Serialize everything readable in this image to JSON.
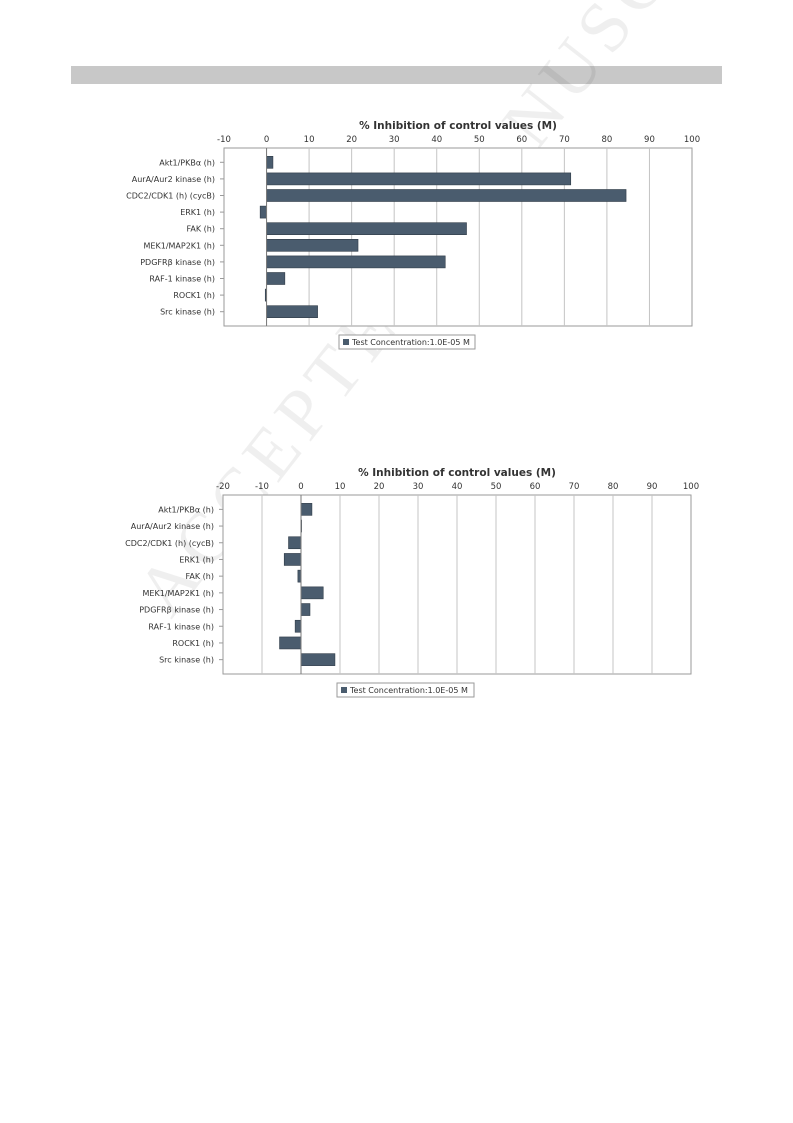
{
  "watermark": "ACCEPTED MANUSCRIPT",
  "chart_data": [
    {
      "type": "bar",
      "orientation": "horizontal",
      "title": "% Inhibition of control values (M)",
      "xlim": [
        -10,
        100
      ],
      "xticks": [
        -10,
        0,
        10,
        20,
        30,
        40,
        50,
        60,
        70,
        80,
        90,
        100
      ],
      "categories": [
        "Akt1/PKBα (h)",
        "AurA/Aur2 kinase (h)",
        "CDC2/CDK1 (h) (cycB)",
        "ERK1 (h)",
        "FAK (h)",
        "MEK1/MAP2K1 (h)",
        "PDGFRβ kinase (h)",
        "RAF-1 kinase (h)",
        "ROCK1 (h)",
        "Src kinase (h)"
      ],
      "series": [
        {
          "name": "Test Concentration:1.0E-05 M",
          "values": [
            1.5,
            71.5,
            84.5,
            -1.5,
            47,
            21.5,
            42,
            4.3,
            -0.3,
            12
          ]
        }
      ],
      "legend_position": "bottom",
      "grid": true,
      "bar_color": "#4a5c6e"
    },
    {
      "type": "bar",
      "orientation": "horizontal",
      "title": "% Inhibition of control values (M)",
      "xlim": [
        -20,
        100
      ],
      "xticks": [
        -20,
        -10,
        0,
        10,
        20,
        30,
        40,
        50,
        60,
        70,
        80,
        90,
        100
      ],
      "categories": [
        "Akt1/PKBα (h)",
        "AurA/Aur2 kinase (h)",
        "CDC2/CDK1 (h) (cycB)",
        "ERK1 (h)",
        "FAK (h)",
        "MEK1/MAP2K1 (h)",
        "PDGFRβ kinase (h)",
        "RAF-1 kinase (h)",
        "ROCK1 (h)",
        "Src kinase (h)"
      ],
      "series": [
        {
          "name": "Test Concentration:1.0E-05 M",
          "values": [
            2.8,
            0,
            -3.2,
            -4.3,
            -0.8,
            5.7,
            2.3,
            -1.5,
            -5.5,
            8.7
          ]
        }
      ],
      "legend_position": "bottom",
      "grid": true,
      "bar_color": "#4a5c6e"
    }
  ]
}
